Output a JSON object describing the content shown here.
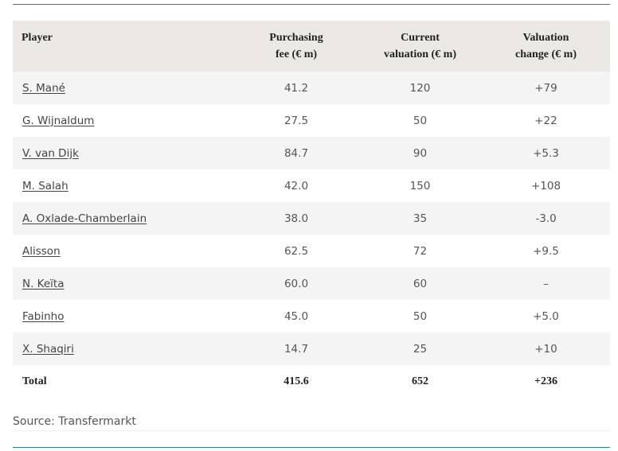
{
  "table": {
    "headers": {
      "player": "Player",
      "fee": [
        "Purchasing",
        "fee (€ m)"
      ],
      "valuation": [
        "Current",
        "valuation (€ m)"
      ],
      "change": [
        "Valuation",
        "change (€ m)"
      ]
    },
    "rows": [
      {
        "player": "S. Mané",
        "fee": "41.2",
        "valuation": "120",
        "change": "+79"
      },
      {
        "player": "G. Wijnaldum",
        "fee": "27.5",
        "valuation": "50",
        "change": "+22"
      },
      {
        "player": "V. van Dijk",
        "fee": "84.7",
        "valuation": "90",
        "change": "+5.3"
      },
      {
        "player": "M. Salah",
        "fee": "42.0",
        "valuation": "150",
        "change": "+108"
      },
      {
        "player": "A. Oxlade-Chamberlain",
        "fee": "38.0",
        "valuation": "35",
        "change": "-3.0"
      },
      {
        "player": "Alisson",
        "fee": "62.5",
        "valuation": "72",
        "change": "+9.5"
      },
      {
        "player": "N. Keïta",
        "fee": "60.0",
        "valuation": "60",
        "change": "–"
      },
      {
        "player": "Fabinho",
        "fee": "45.0",
        "valuation": "50",
        "change": "+5.0"
      },
      {
        "player": "X. Shaqiri",
        "fee": "14.7",
        "valuation": "25",
        "change": "+10"
      }
    ],
    "total": {
      "label": "Total",
      "fee": "415.6",
      "valuation": "652",
      "change": "+236"
    }
  },
  "source": "Source: Transfermarkt"
}
